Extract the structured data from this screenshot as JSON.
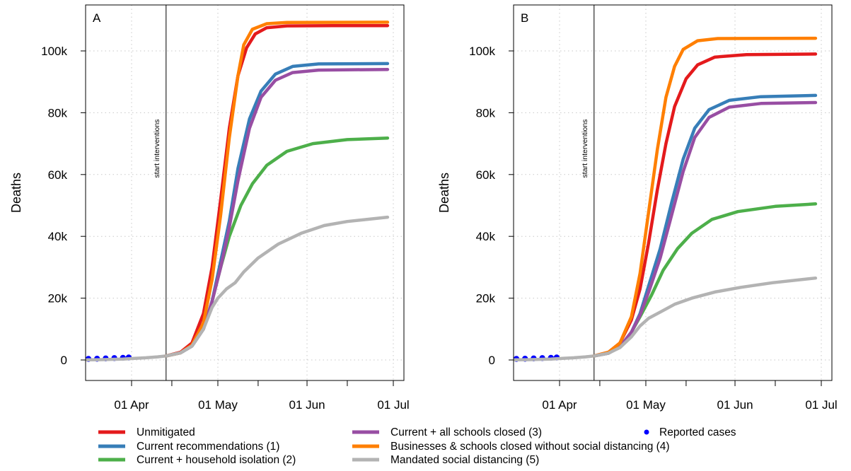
{
  "colors": {
    "Unmitigated": "#e41a1c",
    "Current recommendations (1)": "#377eb8",
    "Current + household isolation (2)": "#4daf4a",
    "Current + all schools closed (3)": "#984ea3",
    "Businesses & schools closed without social distancing (4)": "#ff7f00",
    "Mandated social distancing (5)": "#b3b3b3",
    "Reported cases": "#0000ff"
  },
  "legend": {
    "entries": [
      {
        "label": "Unmitigated",
        "marker": "line"
      },
      {
        "label": "Current recommendations (1)",
        "marker": "line"
      },
      {
        "label": "Current + household isolation (2)",
        "marker": "line"
      },
      {
        "label": "Current + all schools closed (3)",
        "marker": "line"
      },
      {
        "label": "Businesses & schools closed without social distancing (4)",
        "marker": "line"
      },
      {
        "label": "Mandated social distancing (5)",
        "marker": "line"
      },
      {
        "label": "Reported cases",
        "marker": "point"
      }
    ]
  },
  "chart_data": [
    {
      "panel_label": "A",
      "type": "line",
      "ylabel": "Deaths",
      "xlabel": "",
      "x_tick_labels": [
        "01 Apr",
        "01 May",
        "01 Jun",
        "01 Jul"
      ],
      "x_tick_dates": [
        "2020-04-01",
        "2020-05-01",
        "2020-06-01",
        "2020-07-01"
      ],
      "y_tick_labels": [
        "0",
        "20k",
        "40k",
        "60k",
        "80k",
        "100k"
      ],
      "ylim": [
        0,
        110000
      ],
      "xlim": [
        "2020-03-06",
        "2020-07-05"
      ],
      "grid": true,
      "vline": {
        "date": "2020-04-13",
        "label": "start interventions"
      },
      "series": [
        {
          "name": "Unmitigated",
          "points": [
            [
              "2020-04-13",
              1300
            ],
            [
              "2020-04-18",
              2500
            ],
            [
              "2020-04-22",
              5500
            ],
            [
              "2020-04-26",
              15000
            ],
            [
              "2020-04-29",
              30000
            ],
            [
              "2020-05-02",
              52000
            ],
            [
              "2020-05-05",
              75000
            ],
            [
              "2020-05-08",
              92000
            ],
            [
              "2020-05-11",
              101000
            ],
            [
              "2020-05-14",
              105500
            ],
            [
              "2020-05-18",
              107500
            ],
            [
              "2020-05-25",
              108100
            ],
            [
              "2020-06-10",
              108200
            ],
            [
              "2020-06-29",
              108200
            ]
          ]
        },
        {
          "name": "Current recommendations (1)",
          "points": [
            [
              "2020-04-13",
              1300
            ],
            [
              "2020-04-18",
              2300
            ],
            [
              "2020-04-22",
              4500
            ],
            [
              "2020-04-26",
              10000
            ],
            [
              "2020-04-29",
              19000
            ],
            [
              "2020-05-02",
              32000
            ],
            [
              "2020-05-05",
              45000
            ],
            [
              "2020-05-08",
              62000
            ],
            [
              "2020-05-12",
              78000
            ],
            [
              "2020-05-16",
              87000
            ],
            [
              "2020-05-21",
              92500
            ],
            [
              "2020-05-27",
              95000
            ],
            [
              "2020-06-05",
              95800
            ],
            [
              "2020-06-29",
              95900
            ]
          ]
        },
        {
          "name": "Current + household isolation (2)",
          "points": [
            [
              "2020-04-13",
              1300
            ],
            [
              "2020-04-18",
              2300
            ],
            [
              "2020-04-22",
              4500
            ],
            [
              "2020-04-26",
              10000
            ],
            [
              "2020-04-29",
              19000
            ],
            [
              "2020-05-02",
              30000
            ],
            [
              "2020-05-05",
              40000
            ],
            [
              "2020-05-09",
              50000
            ],
            [
              "2020-05-13",
              57000
            ],
            [
              "2020-05-18",
              63000
            ],
            [
              "2020-05-25",
              67500
            ],
            [
              "2020-06-03",
              70000
            ],
            [
              "2020-06-15",
              71300
            ],
            [
              "2020-06-29",
              71800
            ]
          ]
        },
        {
          "name": "Current + all schools closed (3)",
          "points": [
            [
              "2020-04-13",
              1300
            ],
            [
              "2020-04-18",
              2300
            ],
            [
              "2020-04-22",
              4500
            ],
            [
              "2020-04-26",
              10000
            ],
            [
              "2020-04-29",
              19000
            ],
            [
              "2020-05-02",
              30000
            ],
            [
              "2020-05-05",
              43000
            ],
            [
              "2020-05-08",
              58000
            ],
            [
              "2020-05-12",
              75000
            ],
            [
              "2020-05-16",
              85000
            ],
            [
              "2020-05-21",
              90500
            ],
            [
              "2020-05-27",
              93000
            ],
            [
              "2020-06-05",
              93800
            ],
            [
              "2020-06-29",
              94000
            ]
          ]
        },
        {
          "name": "Businesses & schools closed without social distancing (4)",
          "points": [
            [
              "2020-04-13",
              1300
            ],
            [
              "2020-04-18",
              2300
            ],
            [
              "2020-04-22",
              4800
            ],
            [
              "2020-04-26",
              12000
            ],
            [
              "2020-04-29",
              26000
            ],
            [
              "2020-05-02",
              47000
            ],
            [
              "2020-05-05",
              72000
            ],
            [
              "2020-05-08",
              92000
            ],
            [
              "2020-05-10",
              102000
            ],
            [
              "2020-05-13",
              107000
            ],
            [
              "2020-05-18",
              108800
            ],
            [
              "2020-05-25",
              109200
            ],
            [
              "2020-06-29",
              109300
            ]
          ]
        },
        {
          "name": "Mandated social distancing (5)",
          "points": [
            [
              "2020-04-13",
              1300
            ],
            [
              "2020-04-18",
              2300
            ],
            [
              "2020-04-22",
              4500
            ],
            [
              "2020-04-26",
              10000
            ],
            [
              "2020-04-29",
              17000
            ],
            [
              "2020-05-01",
              20000
            ],
            [
              "2020-05-04",
              23000
            ],
            [
              "2020-05-07",
              25000
            ],
            [
              "2020-05-10",
              28500
            ],
            [
              "2020-05-15",
              33000
            ],
            [
              "2020-05-22",
              37500
            ],
            [
              "2020-05-30",
              41000
            ],
            [
              "2020-06-07",
              43500
            ],
            [
              "2020-06-15",
              44800
            ],
            [
              "2020-06-29",
              46200
            ]
          ]
        }
      ],
      "reported_cases": {
        "name": "Reported cases",
        "points": [
          [
            "2020-03-05",
            100
          ],
          [
            "2020-03-08",
            200
          ],
          [
            "2020-03-11",
            250
          ],
          [
            "2020-03-14",
            300
          ],
          [
            "2020-03-17",
            350
          ],
          [
            "2020-03-20",
            400
          ],
          [
            "2020-03-23",
            500
          ],
          [
            "2020-03-26",
            600
          ],
          [
            "2020-03-29",
            700
          ],
          [
            "2020-03-31",
            800
          ]
        ]
      },
      "pre_intervention": {
        "name": "Mandated social distancing (5)",
        "points": [
          [
            "2020-03-09",
            0
          ],
          [
            "2020-03-13",
            0
          ],
          [
            "2020-03-17",
            50
          ],
          [
            "2020-03-21",
            100
          ],
          [
            "2020-03-25",
            200
          ],
          [
            "2020-03-29",
            300
          ],
          [
            "2020-04-02",
            500
          ],
          [
            "2020-04-06",
            700
          ],
          [
            "2020-04-10",
            1000
          ],
          [
            "2020-04-13",
            1300
          ]
        ]
      }
    },
    {
      "panel_label": "B",
      "type": "line",
      "ylabel": "Deaths",
      "xlabel": "",
      "x_tick_labels": [
        "01 Apr",
        "01 May",
        "01 Jun",
        "01 Jul"
      ],
      "x_tick_dates": [
        "2020-04-01",
        "2020-05-01",
        "2020-06-01",
        "2020-07-01"
      ],
      "y_tick_labels": [
        "0",
        "20k",
        "40k",
        "60k",
        "80k",
        "100k"
      ],
      "ylim": [
        0,
        110000
      ],
      "xlim": [
        "2020-03-06",
        "2020-07-05"
      ],
      "grid": true,
      "vline": {
        "date": "2020-04-13",
        "label": "start interventions"
      },
      "series": [
        {
          "name": "Unmitigated",
          "points": [
            [
              "2020-04-13",
              1300
            ],
            [
              "2020-04-18",
              2500
            ],
            [
              "2020-04-22",
              5500
            ],
            [
              "2020-04-26",
              13000
            ],
            [
              "2020-04-29",
              23000
            ],
            [
              "2020-05-02",
              38000
            ],
            [
              "2020-05-05",
              55000
            ],
            [
              "2020-05-08",
              70000
            ],
            [
              "2020-05-11",
              82000
            ],
            [
              "2020-05-15",
              91000
            ],
            [
              "2020-05-19",
              95500
            ],
            [
              "2020-05-25",
              98000
            ],
            [
              "2020-06-05",
              98800
            ],
            [
              "2020-06-29",
              99000
            ]
          ]
        },
        {
          "name": "Current recommendations (1)",
          "points": [
            [
              "2020-04-13",
              1300
            ],
            [
              "2020-04-18",
              2200
            ],
            [
              "2020-04-22",
              4200
            ],
            [
              "2020-04-26",
              9000
            ],
            [
              "2020-04-29",
              15000
            ],
            [
              "2020-05-02",
              24000
            ],
            [
              "2020-05-06",
              36000
            ],
            [
              "2020-05-10",
              51000
            ],
            [
              "2020-05-14",
              65000
            ],
            [
              "2020-05-18",
              75000
            ],
            [
              "2020-05-23",
              81000
            ],
            [
              "2020-05-30",
              84000
            ],
            [
              "2020-06-10",
              85200
            ],
            [
              "2020-06-29",
              85600
            ]
          ]
        },
        {
          "name": "Current + household isolation (2)",
          "points": [
            [
              "2020-04-13",
              1300
            ],
            [
              "2020-04-18",
              2200
            ],
            [
              "2020-04-22",
              4200
            ],
            [
              "2020-04-26",
              9000
            ],
            [
              "2020-04-29",
              14000
            ],
            [
              "2020-05-03",
              21000
            ],
            [
              "2020-05-07",
              29000
            ],
            [
              "2020-05-12",
              36000
            ],
            [
              "2020-05-17",
              41000
            ],
            [
              "2020-05-24",
              45500
            ],
            [
              "2020-06-02",
              48000
            ],
            [
              "2020-06-15",
              49700
            ],
            [
              "2020-06-29",
              50500
            ]
          ]
        },
        {
          "name": "Current + all schools closed (3)",
          "points": [
            [
              "2020-04-13",
              1300
            ],
            [
              "2020-04-18",
              2200
            ],
            [
              "2020-04-22",
              4200
            ],
            [
              "2020-04-26",
              9000
            ],
            [
              "2020-04-29",
              14500
            ],
            [
              "2020-05-02",
              22000
            ],
            [
              "2020-05-06",
              33000
            ],
            [
              "2020-05-10",
              47000
            ],
            [
              "2020-05-14",
              61000
            ],
            [
              "2020-05-18",
              72000
            ],
            [
              "2020-05-23",
              78500
            ],
            [
              "2020-05-30",
              81800
            ],
            [
              "2020-06-10",
              83000
            ],
            [
              "2020-06-29",
              83300
            ]
          ]
        },
        {
          "name": "Businesses & schools closed without social distancing (4)",
          "points": [
            [
              "2020-04-13",
              1300
            ],
            [
              "2020-04-18",
              2500
            ],
            [
              "2020-04-22",
              5500
            ],
            [
              "2020-04-26",
              14000
            ],
            [
              "2020-04-29",
              28000
            ],
            [
              "2020-05-02",
              48000
            ],
            [
              "2020-05-05",
              68000
            ],
            [
              "2020-05-08",
              85000
            ],
            [
              "2020-05-11",
              95000
            ],
            [
              "2020-05-14",
              100500
            ],
            [
              "2020-05-19",
              103300
            ],
            [
              "2020-05-26",
              104000
            ],
            [
              "2020-06-29",
              104100
            ]
          ]
        },
        {
          "name": "Mandated social distancing (5)",
          "points": [
            [
              "2020-04-13",
              1300
            ],
            [
              "2020-04-18",
              2200
            ],
            [
              "2020-04-22",
              4000
            ],
            [
              "2020-04-26",
              7500
            ],
            [
              "2020-04-29",
              11000
            ],
            [
              "2020-05-02",
              13500
            ],
            [
              "2020-05-06",
              15500
            ],
            [
              "2020-05-11",
              18000
            ],
            [
              "2020-05-17",
              20000
            ],
            [
              "2020-05-25",
              22000
            ],
            [
              "2020-06-03",
              23500
            ],
            [
              "2020-06-14",
              25000
            ],
            [
              "2020-06-29",
              26500
            ]
          ]
        }
      ],
      "reported_cases": {
        "name": "Reported cases",
        "points": [
          [
            "2020-03-05",
            100
          ],
          [
            "2020-03-08",
            200
          ],
          [
            "2020-03-11",
            250
          ],
          [
            "2020-03-14",
            300
          ],
          [
            "2020-03-17",
            350
          ],
          [
            "2020-03-20",
            400
          ],
          [
            "2020-03-23",
            500
          ],
          [
            "2020-03-26",
            600
          ],
          [
            "2020-03-29",
            700
          ],
          [
            "2020-03-31",
            800
          ]
        ]
      },
      "pre_intervention": {
        "name": "Mandated social distancing (5)",
        "points": [
          [
            "2020-03-09",
            0
          ],
          [
            "2020-03-13",
            0
          ],
          [
            "2020-03-17",
            50
          ],
          [
            "2020-03-21",
            100
          ],
          [
            "2020-03-25",
            200
          ],
          [
            "2020-03-29",
            300
          ],
          [
            "2020-04-02",
            500
          ],
          [
            "2020-04-06",
            700
          ],
          [
            "2020-04-10",
            1000
          ],
          [
            "2020-04-13",
            1300
          ]
        ]
      }
    }
  ]
}
